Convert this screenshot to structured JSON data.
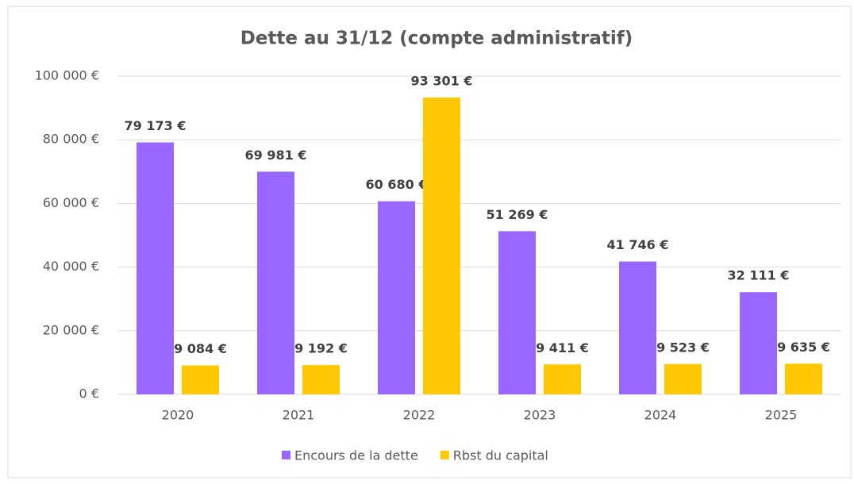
{
  "chart_data": {
    "type": "bar",
    "title": "Dette au 31/12 (compte administratif)",
    "categories": [
      "2020",
      "2021",
      "2022",
      "2023",
      "2024",
      "2025"
    ],
    "series": [
      {
        "name": "Encours de la dette",
        "color": "#9966ff",
        "values": [
          79173,
          69981,
          60680,
          51269,
          41746,
          32111
        ],
        "value_labels": [
          "79 173 €",
          "69 981 €",
          "60 680 €",
          "51 269 €",
          "41 746 €",
          "32 111 €"
        ]
      },
      {
        "name": "Rbst du capital",
        "color": "#ffc800",
        "values": [
          9084,
          9192,
          93301,
          9411,
          9523,
          9635
        ],
        "value_labels": [
          "9 084 €",
          "9 192 €",
          "93 301 €",
          "9 411 €",
          "9 523 €",
          "9 635 €"
        ]
      }
    ],
    "ylim": [
      0,
      100000
    ],
    "yticks": [
      {
        "value": 0,
        "label": "0 €"
      },
      {
        "value": 20000,
        "label": "20 000 €"
      },
      {
        "value": 40000,
        "label": "40 000 €"
      },
      {
        "value": 60000,
        "label": "60 000 €"
      },
      {
        "value": 80000,
        "label": "80 000 €"
      },
      {
        "value": 100000,
        "label": "100 000 €"
      }
    ],
    "grid": true,
    "legend": "bottom"
  }
}
